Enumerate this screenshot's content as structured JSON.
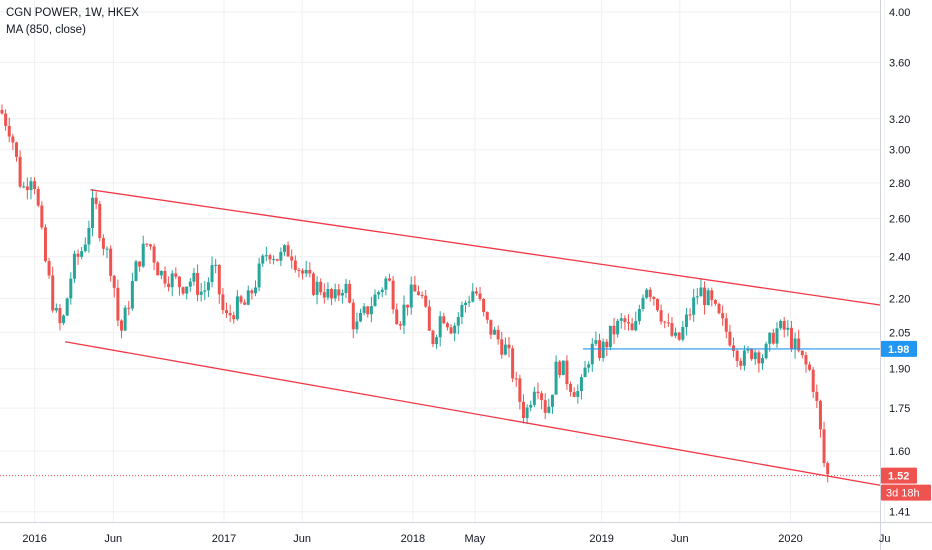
{
  "legend": {
    "title": "CGN POWER, 1W, HKEX",
    "indicator": "MA (850, close)"
  },
  "colors": {
    "up": "#26a69a",
    "down": "#ef5350",
    "trendline": "#f23645",
    "hline": "#2196f3",
    "grid": "#eef0f3",
    "axis_text": "#131722",
    "price_label_bg": "#ef5350",
    "hline_label_bg": "#2196f3"
  },
  "chart_data": {
    "type": "candlestick",
    "title": "CGN POWER, 1W, HKEX",
    "indicator": "MA (850, close)",
    "y_scale": "log",
    "ylim": [
      1.38,
      4.1
    ],
    "y_ticks": [
      4.0,
      3.6,
      3.2,
      3.0,
      2.8,
      2.6,
      2.4,
      2.2,
      2.05,
      1.9,
      1.75,
      1.6,
      1.41
    ],
    "y_tick_labels": [
      "4.00",
      "3.60",
      "3.20",
      "3.00",
      "2.80",
      "2.60",
      "2.40",
      "2.20",
      "2.05",
      "1.90",
      "1.75",
      "1.60",
      "1.41"
    ],
    "x_range": [
      "2015-10-26",
      "2020-06-22"
    ],
    "x_ticks": [
      {
        "date": "2016-01-01",
        "label": "2016"
      },
      {
        "date": "2016-06-01",
        "label": "Jun"
      },
      {
        "date": "2017-01-01",
        "label": "2017"
      },
      {
        "date": "2017-06-01",
        "label": "Jun"
      },
      {
        "date": "2018-01-01",
        "label": "2018"
      },
      {
        "date": "2018-05-01",
        "label": "May"
      },
      {
        "date": "2019-01-01",
        "label": "2019"
      },
      {
        "date": "2019-06-01",
        "label": "Jun"
      },
      {
        "date": "2020-01-01",
        "label": "2020"
      },
      {
        "date": "2020-07-01",
        "label": "Ju"
      }
    ],
    "grid": true,
    "price_path": [
      [
        "2015-10-26",
        3.26
      ],
      [
        "2015-11-16",
        3.12
      ],
      [
        "2015-12-07",
        2.75
      ],
      [
        "2015-12-28",
        2.88
      ],
      [
        "2016-01-18",
        2.42
      ],
      [
        "2016-02-08",
        2.14
      ],
      [
        "2016-02-22",
        2.06
      ],
      [
        "2016-03-14",
        2.35
      ],
      [
        "2016-04-04",
        2.45
      ],
      [
        "2016-04-25",
        2.7
      ],
      [
        "2016-05-09",
        2.5
      ],
      [
        "2016-05-30",
        2.33
      ],
      [
        "2016-06-13",
        2.03
      ],
      [
        "2016-06-27",
        2.15
      ],
      [
        "2016-07-18",
        2.38
      ],
      [
        "2016-08-08",
        2.48
      ],
      [
        "2016-08-29",
        2.32
      ],
      [
        "2016-09-19",
        2.3
      ],
      [
        "2016-10-10",
        2.26
      ],
      [
        "2016-10-31",
        2.29
      ],
      [
        "2016-11-21",
        2.22
      ],
      [
        "2016-12-12",
        2.35
      ],
      [
        "2017-01-02",
        2.1
      ],
      [
        "2017-01-23",
        2.16
      ],
      [
        "2017-02-13",
        2.17
      ],
      [
        "2017-03-06",
        2.3
      ],
      [
        "2017-03-27",
        2.44
      ],
      [
        "2017-04-17",
        2.39
      ],
      [
        "2017-05-08",
        2.44
      ],
      [
        "2017-05-29",
        2.33
      ],
      [
        "2017-06-19",
        2.26
      ],
      [
        "2017-07-10",
        2.25
      ],
      [
        "2017-07-31",
        2.18
      ],
      [
        "2017-08-21",
        2.28
      ],
      [
        "2017-09-11",
        2.06
      ],
      [
        "2017-10-02",
        2.14
      ],
      [
        "2017-10-23",
        2.22
      ],
      [
        "2017-11-13",
        2.3
      ],
      [
        "2017-12-04",
        2.1
      ],
      [
        "2017-12-25",
        2.21
      ],
      [
        "2018-01-15",
        2.24
      ],
      [
        "2018-02-05",
        2.0
      ],
      [
        "2018-02-26",
        2.14
      ],
      [
        "2018-03-19",
        2.07
      ],
      [
        "2018-04-09",
        2.17
      ],
      [
        "2018-04-30",
        2.25
      ],
      [
        "2018-05-21",
        2.09
      ],
      [
        "2018-06-11",
        2.03
      ],
      [
        "2018-07-02",
        1.97
      ],
      [
        "2018-07-23",
        1.8
      ],
      [
        "2018-08-06",
        1.72
      ],
      [
        "2018-08-27",
        1.87
      ],
      [
        "2018-09-17",
        1.73
      ],
      [
        "2018-10-08",
        1.93
      ],
      [
        "2018-10-29",
        1.85
      ],
      [
        "2018-11-19",
        1.8
      ],
      [
        "2018-12-10",
        1.98
      ],
      [
        "2018-12-31",
        1.97
      ],
      [
        "2019-01-21",
        2.05
      ],
      [
        "2019-02-11",
        2.1
      ],
      [
        "2019-03-04",
        2.03
      ],
      [
        "2019-03-25",
        2.28
      ],
      [
        "2019-04-15",
        2.2
      ],
      [
        "2019-05-06",
        2.07
      ],
      [
        "2019-05-27",
        2.0
      ],
      [
        "2019-06-17",
        2.12
      ],
      [
        "2019-07-08",
        2.24
      ],
      [
        "2019-07-29",
        2.18
      ],
      [
        "2019-08-19",
        2.09
      ],
      [
        "2019-09-09",
        2.02
      ],
      [
        "2019-09-30",
        1.93
      ],
      [
        "2019-10-21",
        1.98
      ],
      [
        "2019-11-11",
        1.95
      ],
      [
        "2019-12-02",
        2.06
      ],
      [
        "2019-12-23",
        2.06
      ],
      [
        "2020-01-13",
        1.97
      ],
      [
        "2020-01-27",
        1.92
      ],
      [
        "2020-02-10",
        1.88
      ],
      [
        "2020-02-24",
        1.72
      ],
      [
        "2020-03-02",
        1.6
      ],
      [
        "2020-03-09",
        1.52
      ]
    ],
    "trendlines": [
      {
        "from": [
          "2016-04-18",
          2.76
        ],
        "to": [
          "2020-06-22",
          2.17
        ]
      },
      {
        "from": [
          "2016-02-29",
          2.01
        ],
        "to": [
          "2020-06-22",
          1.49
        ]
      }
    ],
    "horizontal_line": {
      "from": "2018-11-26",
      "to": "2020-06-22",
      "value": 1.98
    },
    "last_price_line": {
      "value": 1.52
    },
    "price_labels": [
      {
        "value": 1.98,
        "text": "1.98"
      },
      {
        "value": 1.52,
        "text": "1.52"
      }
    ],
    "countdown_label": "3d 18h"
  }
}
